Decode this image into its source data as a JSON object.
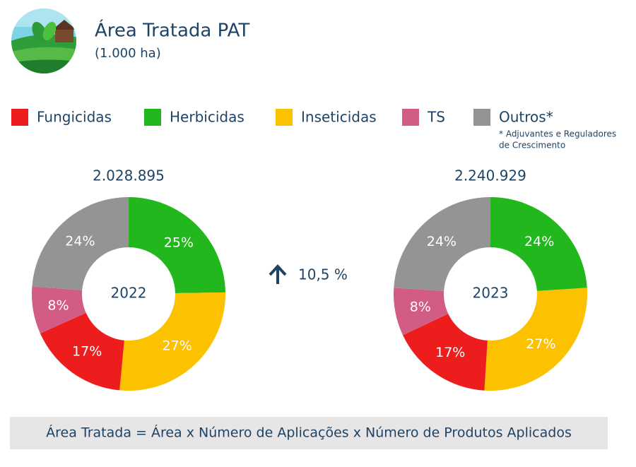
{
  "header": {
    "title": "Área Tratada PAT",
    "subtitle": "(1.000 ha)"
  },
  "legend": {
    "items": [
      {
        "name": "Fungicidas",
        "color": "#ee1d1d"
      },
      {
        "name": "Herbicidas",
        "color": "#22b71c"
      },
      {
        "name": "Inseticidas",
        "color": "#fcc200"
      },
      {
        "name": "TS",
        "color": "#d35c86"
      },
      {
        "name": "Outros*",
        "color": "#949494"
      }
    ],
    "note": [
      "* Adjuvantes e Reguladores",
      "de Crescimento"
    ]
  },
  "chart_data": [
    {
      "type": "pie",
      "title": "2.028.895",
      "center_label": "2022",
      "values": [
        25,
        27,
        17,
        8,
        24
      ],
      "value_labels": [
        "25%",
        "27%",
        "17%",
        "8%",
        "24%"
      ],
      "colors": [
        "#22b71c",
        "#fcc200",
        "#ee1d1d",
        "#d35c86",
        "#949494"
      ]
    },
    {
      "type": "pie",
      "title": "2.240.929",
      "center_label": "2023",
      "values": [
        24,
        27,
        17,
        8,
        24
      ],
      "value_labels": [
        "24%",
        "27%",
        "17%",
        "8%",
        "24%"
      ],
      "colors": [
        "#22b71c",
        "#fcc200",
        "#ee1d1d",
        "#d35c86",
        "#949494"
      ]
    }
  ],
  "change": "10,5 %",
  "formula": "Área Tratada = Área x Número de Aplicações x Número de Produtos Aplicados"
}
